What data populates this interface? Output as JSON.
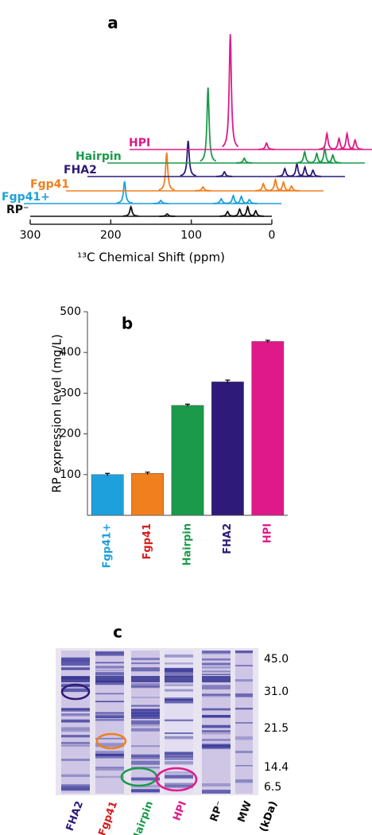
{
  "chart_data": [
    {
      "type": "spectra",
      "title": "a",
      "xlabel": "¹³C Chemical Shift (ppm)",
      "xlim": [
        300,
        0
      ],
      "xticks": [
        300,
        200,
        100,
        0
      ],
      "series": [
        {
          "name": "RP⁻",
          "color": "#111111",
          "x": [
            175,
            130,
            55,
            40,
            30,
            20
          ],
          "values": [
            12,
            3,
            6,
            9,
            12,
            7
          ]
        },
        {
          "name": "Fgp41+",
          "color": "#1ea0dc",
          "x": [
            175,
            130,
            55,
            40,
            30,
            20
          ],
          "values": [
            28,
            4,
            6,
            10,
            9,
            5
          ]
        },
        {
          "name": "Fgp41",
          "color": "#f07f1e",
          "x": [
            175,
            130,
            55,
            40,
            30,
            20
          ],
          "values": [
            48,
            5,
            9,
            14,
            11,
            6
          ]
        },
        {
          "name": "FHA2",
          "color": "#2e1a78",
          "x": [
            175,
            130,
            55,
            40,
            30,
            20
          ],
          "values": [
            45,
            6,
            10,
            16,
            12,
            8
          ]
        },
        {
          "name": "Hairpin",
          "color": "#1a9a4a",
          "x": [
            175,
            130,
            55,
            40,
            30,
            20
          ],
          "values": [
            95,
            6,
            14,
            12,
            18,
            10
          ]
        },
        {
          "name": "HPI",
          "color": "#e0198a",
          "x": [
            175,
            130,
            55,
            40,
            30,
            20
          ],
          "values": [
            145,
            8,
            20,
            14,
            20,
            12
          ]
        }
      ]
    },
    {
      "type": "bar",
      "title": "b",
      "ylabel": "RP expression level (mg/L)",
      "categories": [
        "Fgp41+",
        "Fgp41",
        "Hairpin",
        "FHA2",
        "HPI"
      ],
      "values": [
        100,
        103,
        270,
        328,
        427
      ],
      "errors": [
        3,
        3,
        3,
        4,
        3
      ],
      "colors": [
        "#1ea0dc",
        "#f07f1e",
        "#1a9a4a",
        "#2e1a78",
        "#e0198a"
      ],
      "label_colors": [
        "#1ea0dc",
        "#d62020",
        "#1a9a4a",
        "#2e1a78",
        "#e0198a"
      ],
      "ylim": [
        0,
        500
      ],
      "yticks": [
        100,
        200,
        300,
        400,
        500
      ]
    }
  ],
  "gel": {
    "title": "c",
    "lanes": [
      {
        "label": "FHA2",
        "color": "#2e1a78"
      },
      {
        "label": "Fgp41",
        "color": "#d62020"
      },
      {
        "label": "Hairpin",
        "color": "#1a9a4a"
      },
      {
        "label": "HPI",
        "color": "#e0198a"
      },
      {
        "label": "RP⁻",
        "color": "#111111"
      },
      {
        "label": "MW",
        "color": "#111111"
      }
    ],
    "unit": "(kDa)",
    "markers": [
      "45.0",
      "31.0",
      "21.5",
      "14.4",
      "6.5"
    ]
  }
}
